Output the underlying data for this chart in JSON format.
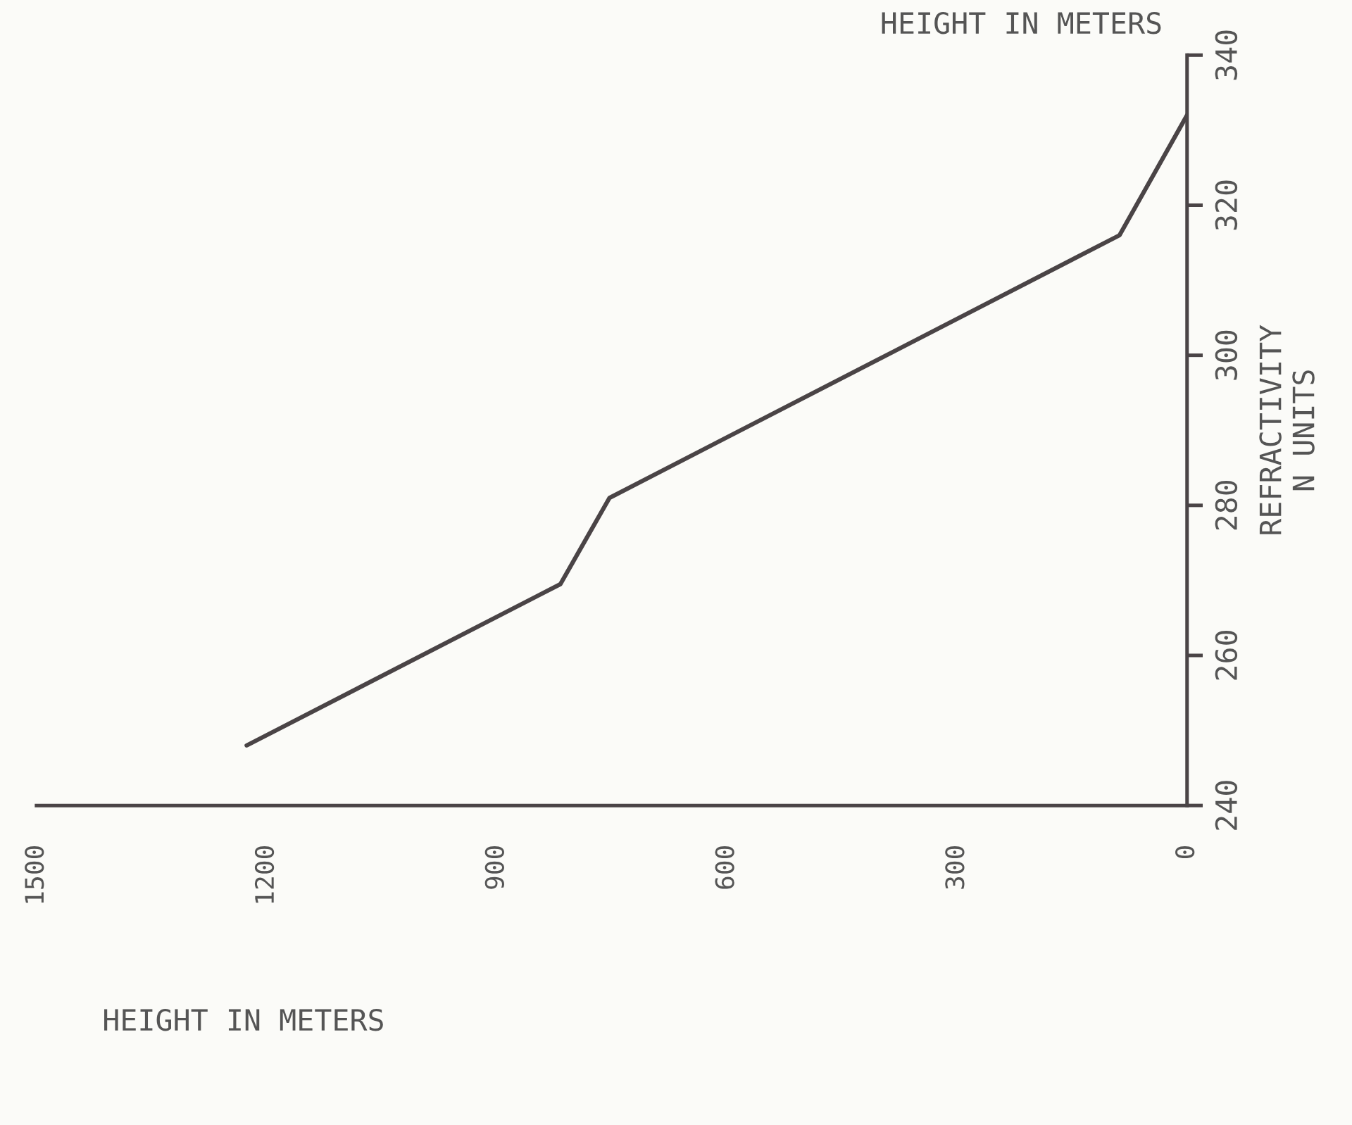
{
  "chart_data": {
    "type": "line",
    "xlabel": "HEIGHT IN METERS",
    "ylabel": "REFRACTIVITY\nN UNITS",
    "annotations": [
      "HEIGHT IN METERS"
    ],
    "x": [
      1226,
      817,
      753,
      88,
      0
    ],
    "series": [
      {
        "color": "#4a4446",
        "values": [
          248,
          269.5,
          281,
          316,
          332
        ]
      }
    ],
    "xlim": [
      1500,
      0
    ],
    "xticks": [
      1500,
      1200,
      900,
      600,
      300,
      0
    ],
    "ylim": [
      240,
      340
    ],
    "yticks": [
      240,
      260,
      280,
      300,
      320,
      340
    ],
    "grid": false,
    "legend": false,
    "marker": "none",
    "line_style": "solid"
  }
}
